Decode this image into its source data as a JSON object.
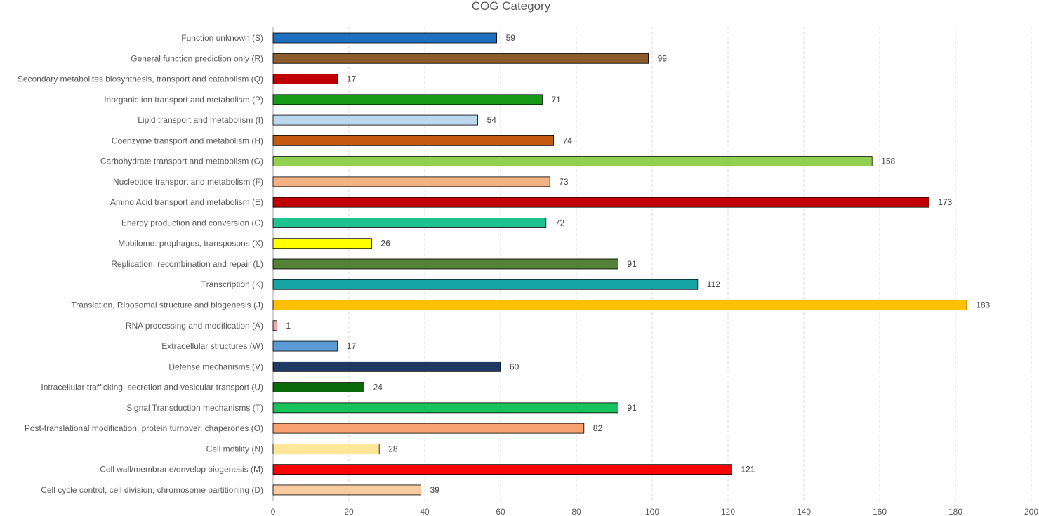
{
  "chart_data": {
    "type": "bar",
    "orientation": "horizontal",
    "title": "COG Category",
    "xlabel": "",
    "ylabel": "",
    "xlim": [
      0,
      200
    ],
    "x_ticks": [
      0,
      20,
      40,
      60,
      80,
      100,
      120,
      140,
      160,
      180,
      200
    ],
    "grid": "vertical dashed",
    "legend": "none",
    "categories": [
      "Function unknown (S)",
      "General function prediction only (R)",
      "Secondary metabolites biosynthesis, transport and catabolism (Q)",
      "Inorganic ion transport and metabolism (P)",
      "Lipid transport and metabolism (I)",
      "Coenzyme transport and metabolism (H)",
      "Carbohydrate transport and metabolism (G)",
      "Nucleotide transport and metabolism (F)",
      "Amino Acid transport and metabolism (E)",
      "Energy production and conversion (C)",
      "Mobilome: prophages, transposons (X)",
      "Replication, recombination and repair (L)",
      "Transcription (K)",
      "Translation, Ribosomal structure and biogenesis (J)",
      "RNA processing and modification (A)",
      "Extracellular structures (W)",
      "Defense mechanisms (V)",
      "Intracellular trafficking, secretion and vesicular transport (U)",
      "Signal Transduction mechanisms (T)",
      "Post-translational modification, protein turnover, chaperones (O)",
      "Cell motility (N)",
      "Cell wall/membrane/envelop biogenesis (M)",
      "Cell cycle control, cell division, chromosome partitioning (D)"
    ],
    "values": [
      59,
      99,
      17,
      71,
      54,
      74,
      158,
      73,
      173,
      72,
      26,
      91,
      112,
      183,
      1,
      17,
      60,
      24,
      91,
      82,
      28,
      121,
      39
    ],
    "colors": [
      "#1f6fc1",
      "#8c5b2e",
      "#c00000",
      "#179a17",
      "#bdd7ee",
      "#c55a11",
      "#92d050",
      "#f4b183",
      "#c00000",
      "#1fc38f",
      "#ffff00",
      "#538135",
      "#16a5a5",
      "#ffc000",
      "#f4a6a6",
      "#5b9bd5",
      "#203864",
      "#0b6b0b",
      "#17c35a",
      "#f8a070",
      "#ffe699",
      "#ff0000",
      "#f8cba0"
    ]
  }
}
